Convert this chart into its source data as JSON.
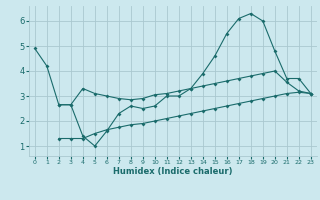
{
  "xlabel": "Humidex (Indice chaleur)",
  "bg_color": "#cce8ee",
  "grid_color": "#aac8d0",
  "line_color": "#1a6b6b",
  "xlim": [
    -0.5,
    23.5
  ],
  "ylim": [
    0.6,
    6.6
  ],
  "yticks": [
    1,
    2,
    3,
    4,
    5,
    6
  ],
  "xticks": [
    0,
    1,
    2,
    3,
    4,
    5,
    6,
    7,
    8,
    9,
    10,
    11,
    12,
    13,
    14,
    15,
    16,
    17,
    18,
    19,
    20,
    21,
    22,
    23
  ],
  "line1_x": [
    0,
    1,
    2,
    3,
    4,
    5,
    6,
    7,
    8,
    9,
    10,
    11,
    12,
    13,
    14,
    15,
    16,
    17,
    18,
    19,
    20,
    21,
    22,
    23
  ],
  "line1_y": [
    4.9,
    4.2,
    2.65,
    2.65,
    3.3,
    3.1,
    3.0,
    2.9,
    2.85,
    2.9,
    3.05,
    3.1,
    3.2,
    3.3,
    3.4,
    3.5,
    3.6,
    3.7,
    3.8,
    3.9,
    4.0,
    3.55,
    3.2,
    3.1
  ],
  "line2_x": [
    2,
    3,
    4,
    5,
    6,
    7,
    8,
    9,
    10,
    11,
    12,
    13,
    14,
    15,
    16,
    17,
    18,
    19,
    20,
    21,
    22,
    23
  ],
  "line2_y": [
    2.65,
    2.65,
    1.4,
    1.0,
    1.6,
    2.3,
    2.6,
    2.5,
    2.6,
    3.0,
    3.0,
    3.3,
    3.9,
    4.6,
    5.5,
    6.1,
    6.3,
    6.0,
    4.8,
    3.7,
    3.7,
    3.1
  ],
  "line3_x": [
    2,
    3,
    4,
    5,
    6,
    7,
    8,
    9,
    10,
    11,
    12,
    13,
    14,
    15,
    16,
    17,
    18,
    19,
    20,
    21,
    22,
    23
  ],
  "line3_y": [
    1.3,
    1.3,
    1.3,
    1.5,
    1.65,
    1.75,
    1.85,
    1.9,
    2.0,
    2.1,
    2.2,
    2.3,
    2.4,
    2.5,
    2.6,
    2.7,
    2.8,
    2.9,
    3.0,
    3.1,
    3.15,
    3.1
  ]
}
